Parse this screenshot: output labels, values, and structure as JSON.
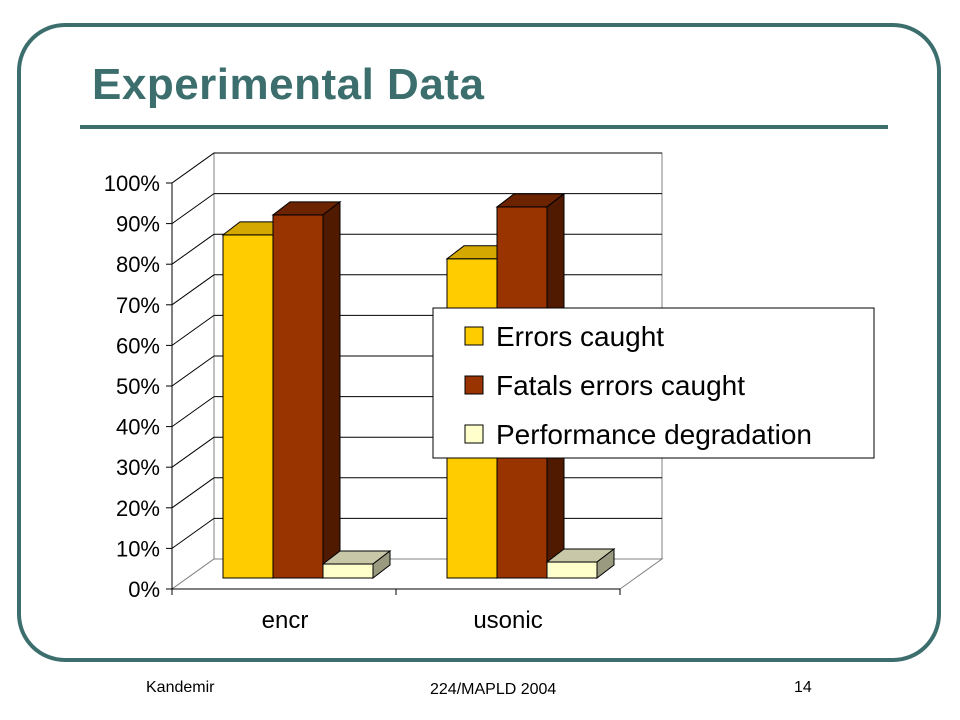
{
  "slide": {
    "title": "Experimental Data",
    "footer": {
      "author": "Kandemir",
      "event": "224/MAPLD 2004",
      "page": "14"
    }
  },
  "chart_data": {
    "type": "bar",
    "style": "3d-clustered-column",
    "categories": [
      "encr",
      "usonic"
    ],
    "series": [
      {
        "name": "Errors caught",
        "values": [
          86,
          80
        ],
        "color": "#ffcc00",
        "side": "#b38f00",
        "top": "#d4a800"
      },
      {
        "name": "Fatals errors caught",
        "values": [
          91,
          93
        ],
        "color": "#993300",
        "side": "#4f1a00",
        "top": "#6b2300"
      },
      {
        "name": "Performance degradation",
        "values": [
          3.5,
          4
        ],
        "color": "#ffffcc",
        "side": "#9a9a80",
        "top": "#c8c8a8"
      }
    ],
    "ylim": [
      0,
      100
    ],
    "yticks": [
      "0%",
      "10%",
      "20%",
      "30%",
      "40%",
      "50%",
      "60%",
      "70%",
      "80%",
      "90%",
      "100%"
    ],
    "grid": true,
    "legend": "right-inside"
  }
}
